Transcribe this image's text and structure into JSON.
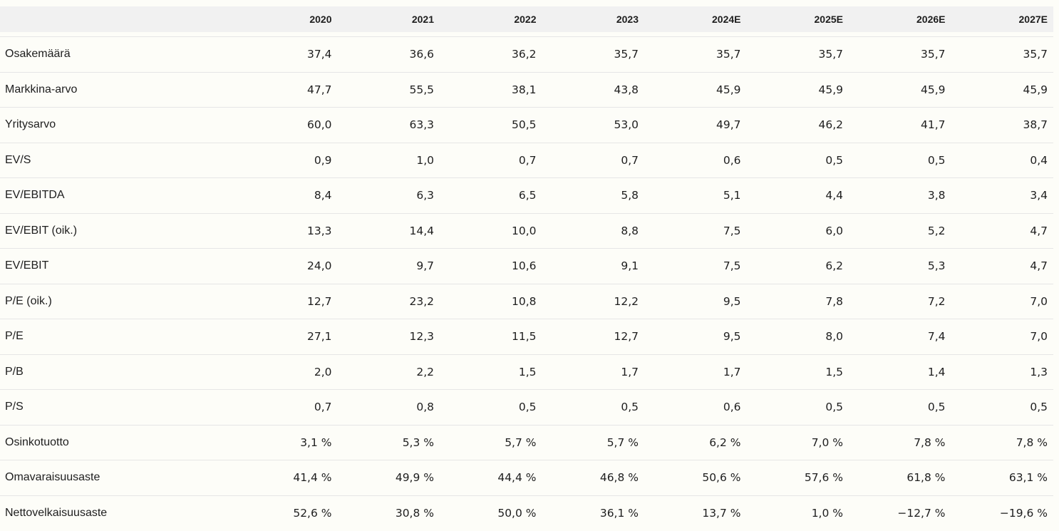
{
  "table": {
    "headers": [
      "",
      "2020",
      "2021",
      "2022",
      "2023",
      "2024E",
      "2025E",
      "2026E",
      "2027E"
    ],
    "rows": [
      {
        "label": "Osakemäärä",
        "values": [
          "37,4",
          "36,6",
          "36,2",
          "35,7",
          "35,7",
          "35,7",
          "35,7",
          "35,7"
        ]
      },
      {
        "label": "Markkina-arvo",
        "values": [
          "47,7",
          "55,5",
          "38,1",
          "43,8",
          "45,9",
          "45,9",
          "45,9",
          "45,9"
        ]
      },
      {
        "label": "Yritysarvo",
        "values": [
          "60,0",
          "63,3",
          "50,5",
          "53,0",
          "49,7",
          "46,2",
          "41,7",
          "38,7"
        ]
      },
      {
        "label": "EV/S",
        "values": [
          "0,9",
          "1,0",
          "0,7",
          "0,7",
          "0,6",
          "0,5",
          "0,5",
          "0,4"
        ]
      },
      {
        "label": "EV/EBITDA",
        "values": [
          "8,4",
          "6,3",
          "6,5",
          "5,8",
          "5,1",
          "4,4",
          "3,8",
          "3,4"
        ]
      },
      {
        "label": "EV/EBIT (oik.)",
        "values": [
          "13,3",
          "14,4",
          "10,0",
          "8,8",
          "7,5",
          "6,0",
          "5,2",
          "4,7"
        ]
      },
      {
        "label": "EV/EBIT",
        "values": [
          "24,0",
          "9,7",
          "10,6",
          "9,1",
          "7,5",
          "6,2",
          "5,3",
          "4,7"
        ]
      },
      {
        "label": "P/E (oik.)",
        "values": [
          "12,7",
          "23,2",
          "10,8",
          "12,2",
          "9,5",
          "7,8",
          "7,2",
          "7,0"
        ]
      },
      {
        "label": "P/E",
        "values": [
          "27,1",
          "12,3",
          "11,5",
          "12,7",
          "9,5",
          "8,0",
          "7,4",
          "7,0"
        ]
      },
      {
        "label": "P/B",
        "values": [
          "2,0",
          "2,2",
          "1,5",
          "1,7",
          "1,7",
          "1,5",
          "1,4",
          "1,3"
        ]
      },
      {
        "label": "P/S",
        "values": [
          "0,7",
          "0,8",
          "0,5",
          "0,5",
          "0,6",
          "0,5",
          "0,5",
          "0,5"
        ]
      },
      {
        "label": "Osinkotuotto",
        "values": [
          "3,1 %",
          "5,3 %",
          "5,7 %",
          "5,7 %",
          "6,2 %",
          "7,0 %",
          "7,8 %",
          "7,8 %"
        ]
      },
      {
        "label": "Omavaraisuusaste",
        "values": [
          "41,4 %",
          "49,9 %",
          "44,4 %",
          "46,8 %",
          "50,6 %",
          "57,6 %",
          "61,8 %",
          "63,1 %"
        ]
      },
      {
        "label": "Nettovelkaisuusaste",
        "values": [
          "52,6 %",
          "30,8 %",
          "50,0 %",
          "36,1 %",
          "13,7 %",
          "1,0 %",
          "−12,7 %",
          "−19,6 %"
        ]
      }
    ]
  }
}
